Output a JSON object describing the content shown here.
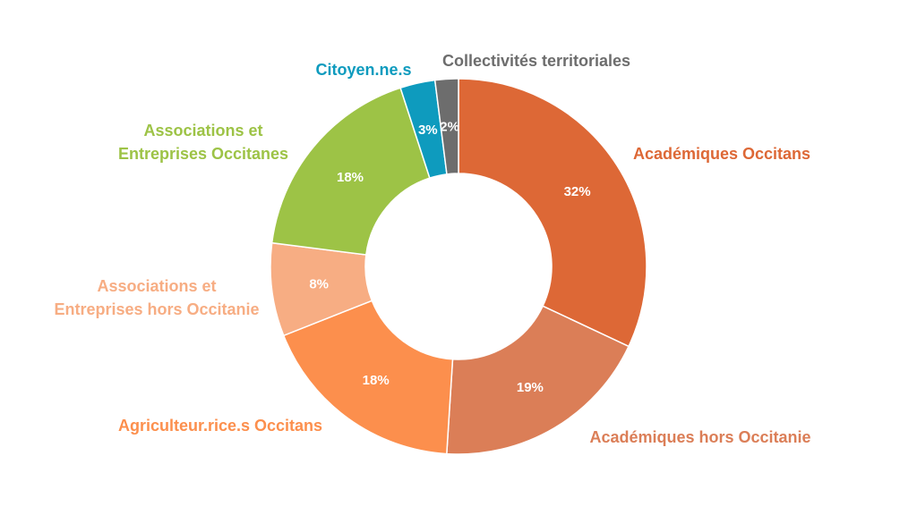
{
  "chart_data": {
    "type": "pie",
    "donut": true,
    "slices": [
      {
        "label": "Académiques Occitans",
        "value": 32,
        "value_label": "32%",
        "color": "#DD6836",
        "label_lines": [
          "Académiques Occitans"
        ]
      },
      {
        "label": "Académiques hors Occitanie",
        "value": 19,
        "value_label": "19%",
        "color": "#DB7E57",
        "label_lines": [
          "Académiques hors Occitanie"
        ]
      },
      {
        "label": "Agriculteur.rice.s Occitans",
        "value": 18,
        "value_label": "18%",
        "color": "#FC8F4D",
        "label_lines": [
          "Agriculteur.rice.s Occitans"
        ]
      },
      {
        "label": "Associations et Entreprises hors Occitanie",
        "value": 8,
        "value_label": "8%",
        "color": "#F7AD83",
        "label_lines": [
          "Associations et",
          "Entreprises hors Occitanie"
        ]
      },
      {
        "label": "Associations et Entreprises Occitanes",
        "value": 18,
        "value_label": "18%",
        "color": "#9DC346",
        "label_lines": [
          "Associations et",
          "Entreprises Occitanes"
        ]
      },
      {
        "label": "Citoyen.ne.s",
        "value": 3,
        "value_label": "3%",
        "color": "#0E9BBE",
        "label_lines": [
          "Citoyen.ne.s"
        ]
      },
      {
        "label": "Collectivités territoriales",
        "value": 2,
        "value_label": "2%",
        "color": "#6D6D6D",
        "label_lines": [
          "Collectivités territoriales"
        ]
      }
    ],
    "legend": "none"
  }
}
